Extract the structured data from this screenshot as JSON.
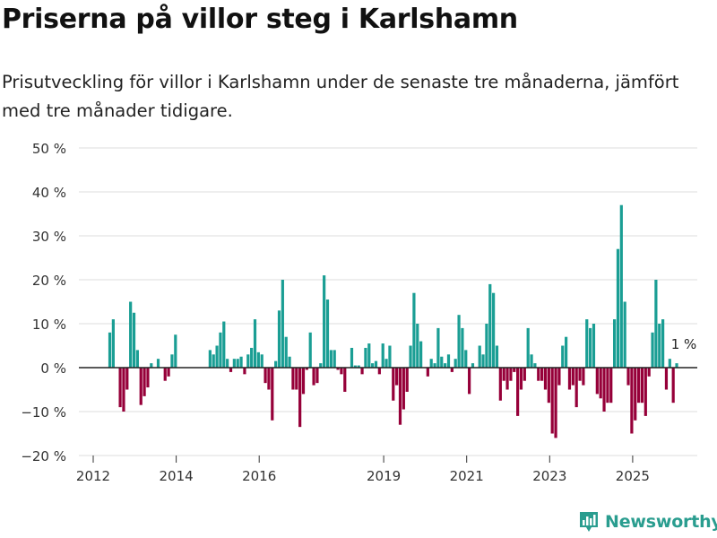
{
  "title": "Priserna på villor steg i Karlshamn",
  "subtitle": "Prisutveckling för villor i Karlshamn under de senaste tre månaderna, jämfört med tre månader tidigare.",
  "brand": {
    "name": "Newsworthy",
    "icon": "bar-chart-logo-icon"
  },
  "colors": {
    "positive": "#1a9e94",
    "negative": "#960039",
    "grid": "#dcdcdc",
    "axis": "#222222"
  },
  "chart_data": {
    "type": "bar",
    "title": "Priserna på villor steg i Karlshamn",
    "xlabel": "",
    "ylabel": "",
    "ylim": [
      -20,
      50
    ],
    "yticks": [
      -20,
      -10,
      0,
      10,
      20,
      30,
      40,
      50
    ],
    "ytick_labels": [
      "−20 %",
      "−10 %",
      "0 %",
      "10 %",
      "20 %",
      "30 %",
      "40 %",
      "50 %"
    ],
    "xticks": [
      2012,
      2014,
      2016,
      2019,
      2021,
      2023,
      2025
    ],
    "xtick_labels": [
      "2012",
      "2014",
      "2016",
      "2019",
      "2021",
      "2023",
      "2025"
    ],
    "grid": true,
    "x_start": 2012.4,
    "x_step": 0.0833,
    "annotation": {
      "text": "1 %",
      "index": 166
    },
    "values": [
      8,
      11,
      0,
      -9,
      -10,
      -5,
      15,
      12.5,
      4,
      -8.5,
      -6.5,
      -4.5,
      1,
      0,
      2,
      0,
      -3,
      -2,
      3,
      7.5,
      0,
      0,
      0,
      0,
      0,
      0,
      0,
      0,
      0,
      4,
      3,
      5,
      8,
      10.5,
      2,
      -1,
      2,
      2,
      2.5,
      -1.5,
      3,
      4.5,
      11,
      3.5,
      3,
      -3.5,
      -5,
      -12,
      1.5,
      13,
      20,
      7,
      2.5,
      -5,
      -5,
      -13.5,
      -6,
      -0.5,
      8,
      -4,
      -3.5,
      1,
      21,
      15.5,
      4,
      4,
      -0.5,
      -1.5,
      -5.5,
      0,
      4.5,
      0.5,
      0.5,
      -1.5,
      4.5,
      5.5,
      1,
      1.5,
      -1.5,
      5.5,
      2,
      5,
      -7.5,
      -4,
      -13,
      -9.5,
      -5.5,
      5,
      17,
      10,
      6,
      0,
      -2,
      2,
      1,
      9,
      2.5,
      1,
      3,
      -1,
      2,
      12,
      9,
      4,
      -6,
      1,
      0,
      5,
      3,
      10,
      19,
      17,
      5,
      -7.5,
      -3,
      -5,
      -3,
      -1,
      -11,
      -5,
      -3,
      9,
      3,
      1,
      -3,
      -3,
      -5,
      -8,
      -15,
      -16,
      -4,
      5,
      7,
      -5,
      -4,
      -9,
      -3,
      -4,
      11,
      9,
      10,
      -6,
      -7,
      -10,
      -8,
      -8,
      11,
      27,
      37,
      15,
      -4,
      -15,
      -12,
      -8,
      -8,
      -11,
      -2,
      8,
      20,
      10,
      11,
      -5,
      2,
      -8,
      1
    ]
  }
}
